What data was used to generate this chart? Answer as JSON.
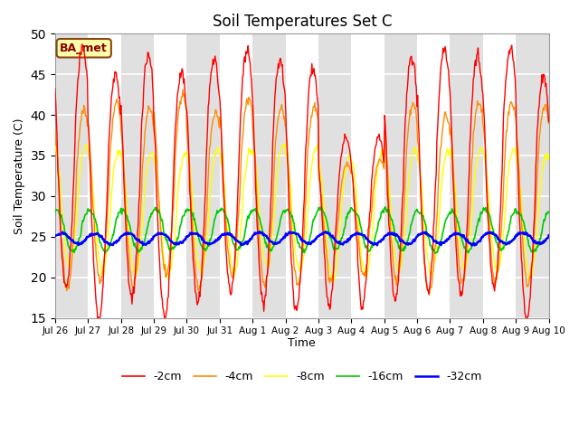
{
  "title": "Soil Temperatures Set C",
  "xlabel": "Time",
  "ylabel": "Soil Temperature (C)",
  "ylim": [
    15,
    50
  ],
  "yticks": [
    15,
    20,
    25,
    30,
    35,
    40,
    45,
    50
  ],
  "colors": {
    "-2cm": "#FF0000",
    "-4cm": "#FF8C00",
    "-8cm": "#FFFF00",
    "-16cm": "#00CC00",
    "-32cm": "#0000FF"
  },
  "annotation": "BA_met",
  "legend_labels": [
    "-2cm",
    "-4cm",
    "-8cm",
    "-16cm",
    "-32cm"
  ],
  "background_color": "#ffffff",
  "plot_bg_color": "#ffffff",
  "alt_band_color": "#e0e0e0",
  "grid_color": "#e0e0e0",
  "n_days": 15,
  "points_per_day": 48,
  "tick_labels": [
    "Jul 26",
    "Jul 27",
    "Jul 28",
    "Jul 29",
    "Jul 30",
    "Jul 31",
    "Aug 1",
    "Aug 2",
    "Aug 3",
    "Aug 4",
    "Aug 5",
    "Aug 6",
    "Aug 7",
    "Aug 8",
    "Aug 9",
    "Aug 10"
  ]
}
